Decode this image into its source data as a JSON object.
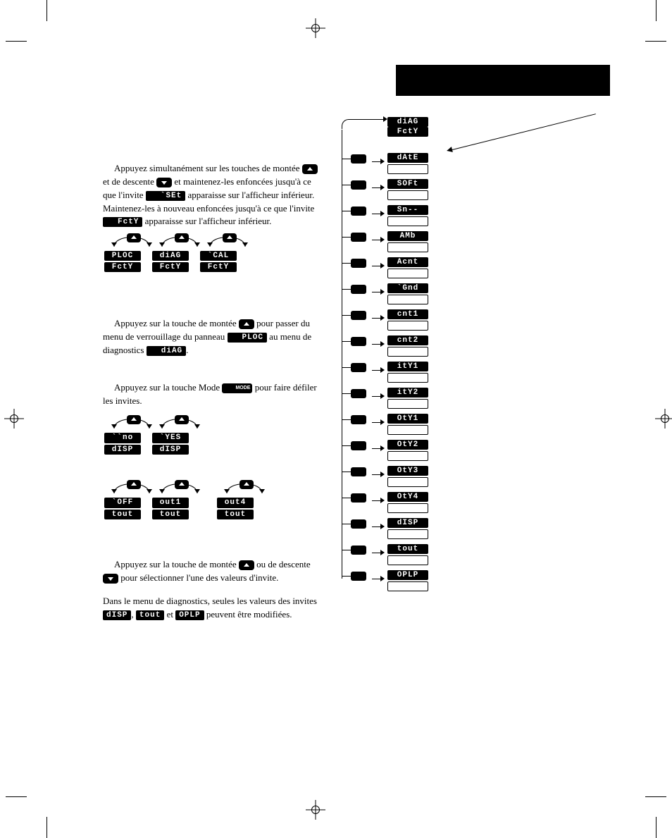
{
  "segments": {
    "SEt": "`SEt",
    "Fcty": "FctY",
    "PLOC": "PLOC",
    "diAg": "diAG",
    "CAL": "`CAL",
    "no": "``no",
    "YES": "`YES",
    "dISP": "dISP",
    "OFF": "`OFF",
    "out1": "out1",
    "out4": "out4",
    "tout": "tout"
  },
  "text": {
    "p1a": "Appuyez simultanément sur les touches de montée ",
    "p1b": " et de descente ",
    "p1c": " et maintenez-les enfoncées jusqu'à ce que l'invite ",
    "p1d": " apparaisse sur l'afficheur inférieur. Maintenez-les à nouveau enfoncées jusqu'à ce que l'invite ",
    "p1e": " apparaisse sur l'afficheur inférieur.",
    "p2a": "Appuyez sur la touche de montée ",
    "p2b": " pour passer du menu de verrouillage du panneau ",
    "p2c": " au menu de diagnostics ",
    "p2d": ".",
    "p3a": "Appuyez sur la touche Mode ",
    "p3b": " pour faire défiler les invites.",
    "p4a": "Appuyez sur la touche de montée ",
    "p4b": " ou de descente ",
    "p4c": " pour sélectionner l'une des valeurs d'invite.",
    "p5a": "Dans le menu de diagnostics, seules les valeurs des invites ",
    "p5b": ", ",
    "p5c": " et ",
    "p5d": " peuvent être modifiées."
  },
  "inline": {
    "SEt": "`SEt",
    "Fcty": "FctY",
    "PLOC": "PLOC",
    "diAg": "diAG",
    "dISP": "dISP",
    "tout": "tout",
    "OPLP": "OPLP",
    "MODE": "MODE"
  },
  "flow": [
    {
      "top": "diAG",
      "bottom": "FctY",
      "first": true
    },
    {
      "top": "dAtE"
    },
    {
      "top": "SOFt"
    },
    {
      "top": "Sn--"
    },
    {
      "top": "AMb"
    },
    {
      "top": "Acnt"
    },
    {
      "top": "`Gnd"
    },
    {
      "top": "cnt1"
    },
    {
      "top": "cnt2"
    },
    {
      "top": "itY1"
    },
    {
      "top": "itY2"
    },
    {
      "top": "OtY1"
    },
    {
      "top": "OtY2"
    },
    {
      "top": "OtY3"
    },
    {
      "top": "OtY4"
    },
    {
      "top": "dISP"
    },
    {
      "top": "tout"
    },
    {
      "top": "OPLP"
    }
  ],
  "colors": {
    "fg": "#000000",
    "bg": "#ffffff"
  }
}
